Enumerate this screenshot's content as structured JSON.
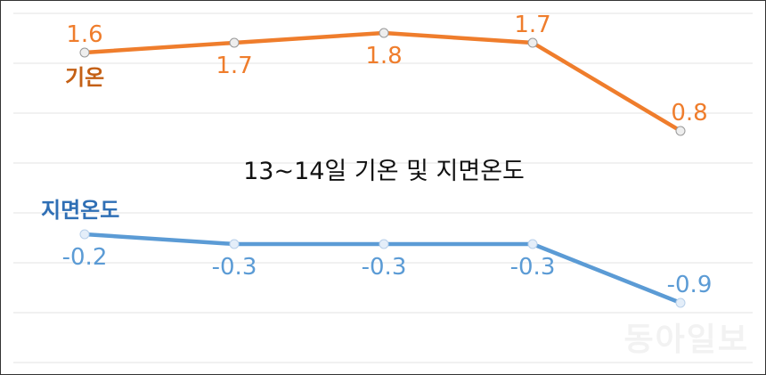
{
  "chart_data": {
    "type": "line",
    "title": "13~14일 기온 및 지면온도",
    "categories": [
      "",
      "",
      "",
      "",
      ""
    ],
    "series": [
      {
        "name": "기온",
        "values": [
          1.6,
          1.7,
          1.8,
          1.7,
          0.8
        ],
        "labels": [
          "1.6",
          "1.7",
          "1.8",
          "1.7",
          "0.8"
        ],
        "color": "#ef7d2c"
      },
      {
        "name": "지면온도",
        "values": [
          -0.2,
          -0.3,
          -0.3,
          -0.3,
          -0.9
        ],
        "labels": [
          "-0.2",
          "-0.3",
          "-0.3",
          "-0.3",
          "-0.9"
        ],
        "color": "#5b9bd5"
      }
    ],
    "grid": true,
    "legend": "inline labels"
  },
  "watermark": "동아일보",
  "colors": {
    "temperature": "#ef7d2c",
    "ground": "#5b9bd5",
    "grid": "#e3e3e3",
    "border": "#333333"
  }
}
